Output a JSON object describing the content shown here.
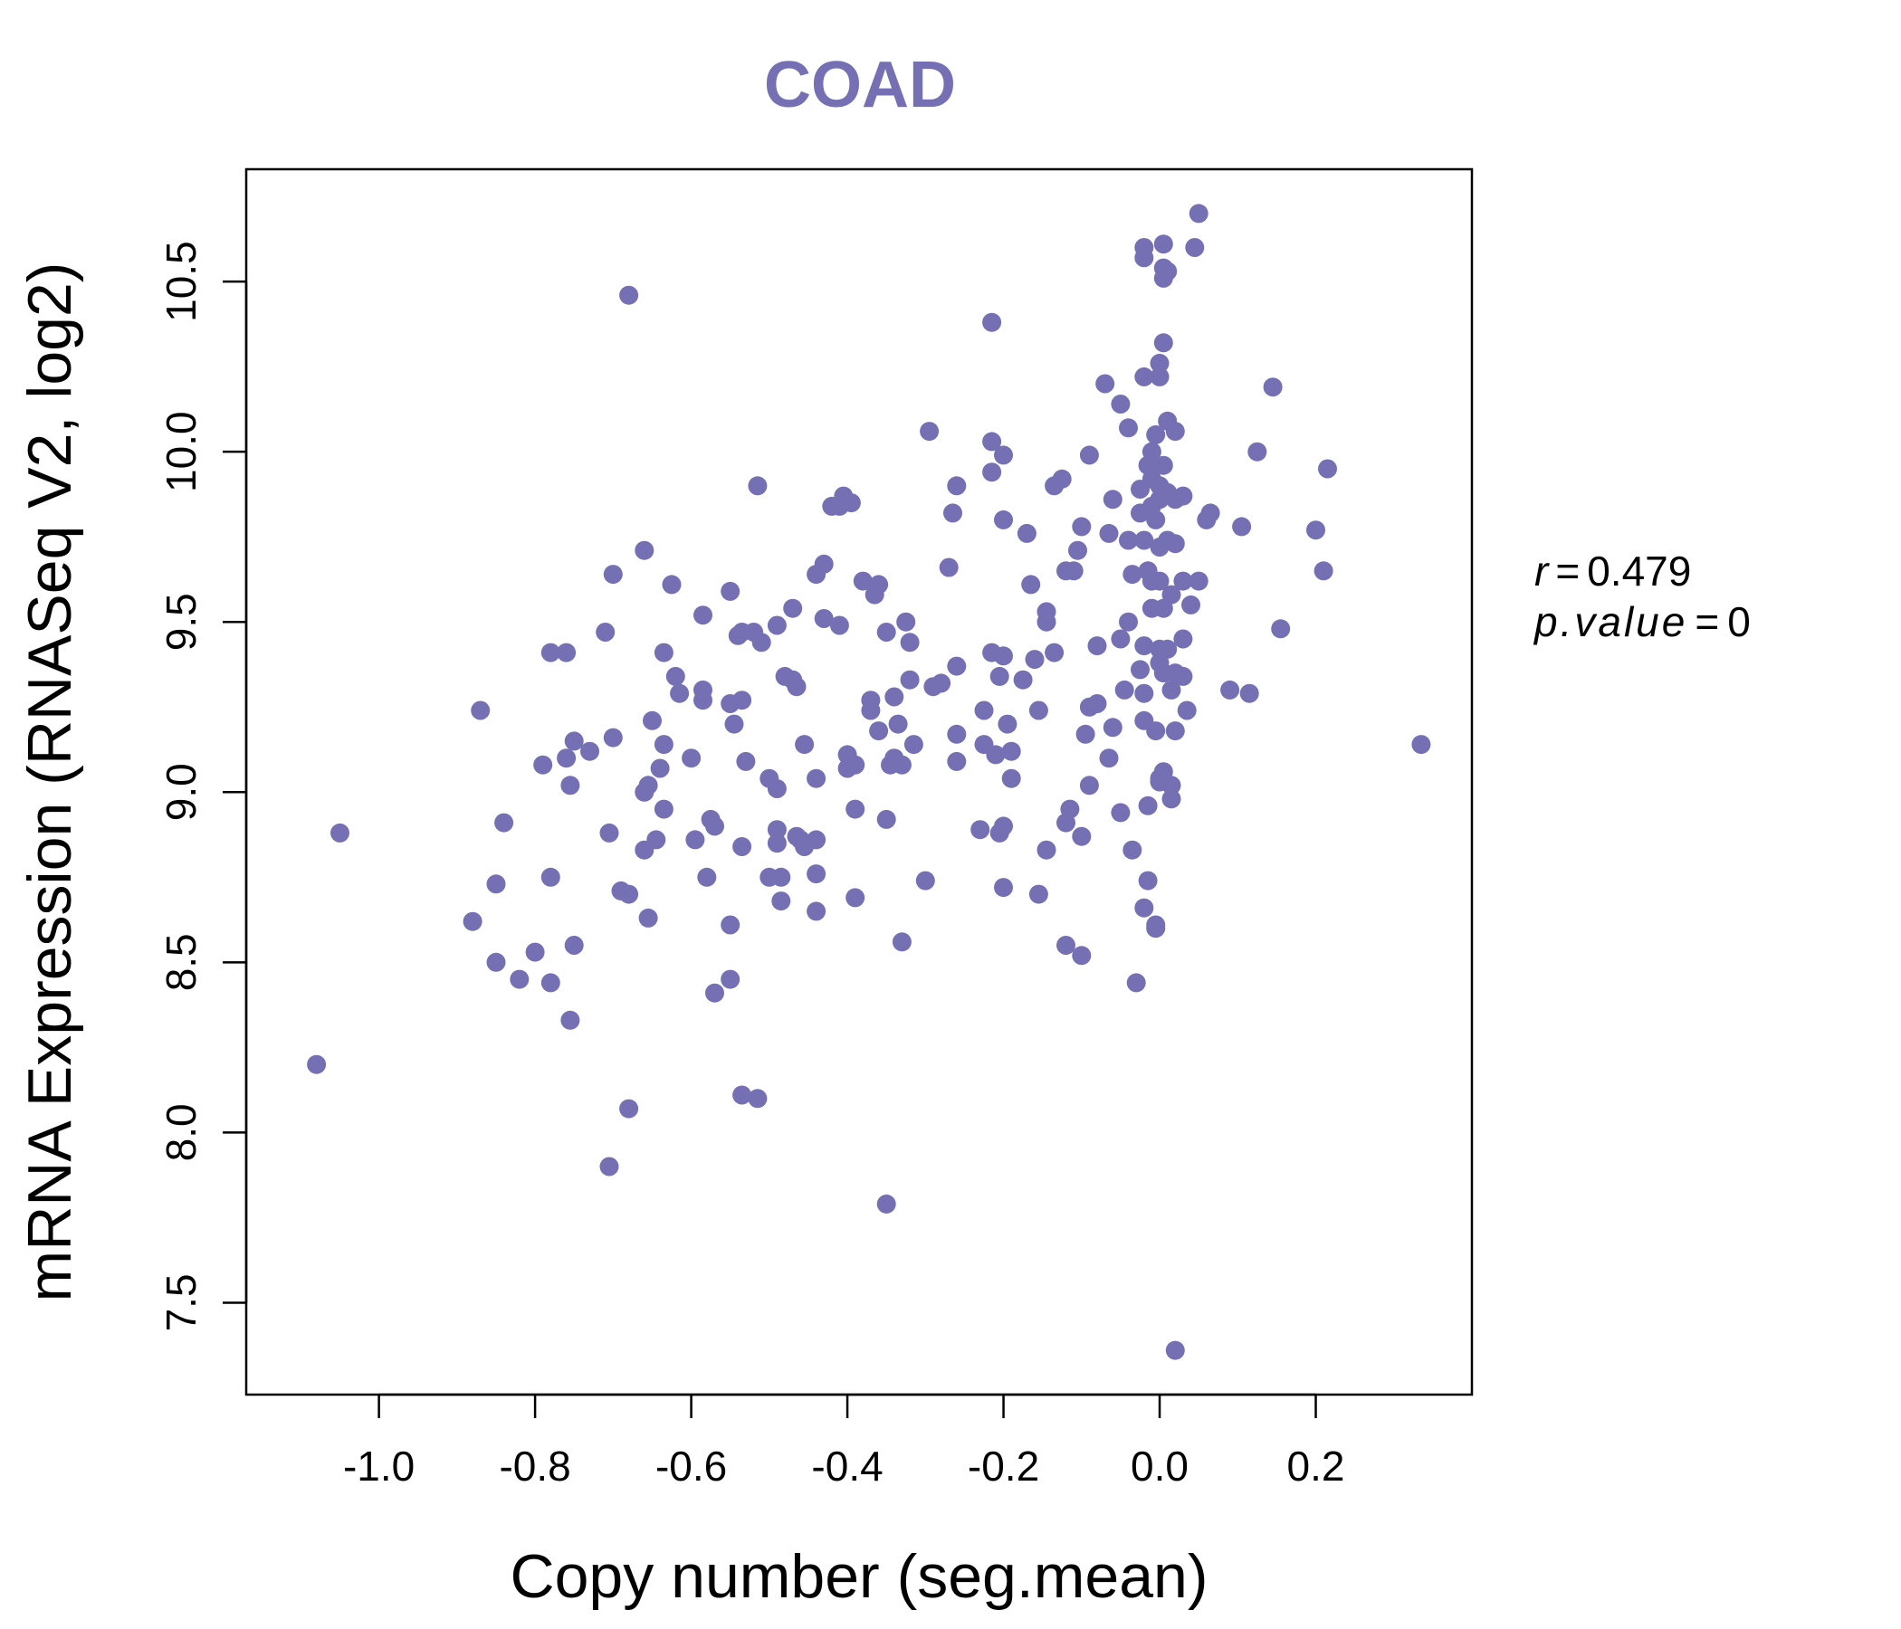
{
  "colors": {
    "point": "#7570B3",
    "title": "#7570B3",
    "axis": "#000000",
    "background": "#ffffff"
  },
  "chart_data": {
    "type": "scatter",
    "title": "COAD",
    "xlabel": "Copy number (seg.mean)",
    "ylabel": "mRNA Expression (RNASeq V2, log2)",
    "xlim": [
      -1.17,
      0.4
    ],
    "ylim": [
      7.23,
      10.83
    ],
    "xticks": [
      -1.0,
      -0.8,
      -0.6,
      -0.4,
      -0.2,
      0.0,
      0.2
    ],
    "xtick_labels": [
      "-1.0",
      "-0.8",
      "-0.6",
      "-0.4",
      "-0.2",
      "0.0",
      "0.2"
    ],
    "yticks": [
      7.5,
      8.0,
      8.5,
      9.0,
      9.5,
      10.0,
      10.5
    ],
    "ytick_labels": [
      "7.5",
      "8.0",
      "8.5",
      "9.0",
      "9.5",
      "10.0",
      "10.5"
    ],
    "stats": {
      "r_label": "r",
      "r_value": "0.479",
      "p_label": "p.value",
      "p_value": "0"
    },
    "points": [
      [
        -1.08,
        8.2
      ],
      [
        -1.05,
        8.88
      ],
      [
        -0.87,
        9.24
      ],
      [
        -0.88,
        8.62
      ],
      [
        -0.85,
        8.73
      ],
      [
        -0.85,
        8.5
      ],
      [
        -0.84,
        8.91
      ],
      [
        -0.82,
        8.45
      ],
      [
        -0.8,
        8.53
      ],
      [
        -0.79,
        9.08
      ],
      [
        -0.78,
        9.41
      ],
      [
        -0.76,
        9.41
      ],
      [
        -0.78,
        8.75
      ],
      [
        -0.78,
        8.44
      ],
      [
        -0.76,
        9.1
      ],
      [
        -0.75,
        9.15
      ],
      [
        -0.755,
        9.02
      ],
      [
        -0.75,
        8.55
      ],
      [
        -0.755,
        8.33
      ],
      [
        -0.73,
        9.12
      ],
      [
        -0.71,
        9.47
      ],
      [
        -0.7,
        9.64
      ],
      [
        -0.7,
        9.16
      ],
      [
        -0.705,
        8.88
      ],
      [
        -0.69,
        8.71
      ],
      [
        -0.68,
        8.7
      ],
      [
        -0.68,
        10.46
      ],
      [
        -0.68,
        8.07
      ],
      [
        -0.705,
        7.9
      ],
      [
        -0.66,
        9.71
      ],
      [
        -0.66,
        9.0
      ],
      [
        -0.655,
        9.02
      ],
      [
        -0.655,
        8.63
      ],
      [
        -0.66,
        8.83
      ],
      [
        -0.65,
        9.21
      ],
      [
        -0.645,
        8.86
      ],
      [
        -0.64,
        9.07
      ],
      [
        -0.635,
        9.14
      ],
      [
        -0.635,
        8.95
      ],
      [
        -0.635,
        9.41
      ],
      [
        -0.625,
        9.61
      ],
      [
        -0.62,
        9.34
      ],
      [
        -0.615,
        9.29
      ],
      [
        -0.6,
        9.1
      ],
      [
        -0.595,
        8.86
      ],
      [
        -0.585,
        9.52
      ],
      [
        -0.585,
        9.3
      ],
      [
        -0.585,
        9.27
      ],
      [
        -0.58,
        8.75
      ],
      [
        -0.575,
        8.92
      ],
      [
        -0.57,
        8.9
      ],
      [
        -0.57,
        8.41
      ],
      [
        -0.55,
        9.59
      ],
      [
        -0.55,
        9.26
      ],
      [
        -0.545,
        9.2
      ],
      [
        -0.54,
        9.46
      ],
      [
        -0.535,
        9.47
      ],
      [
        -0.535,
        9.27
      ],
      [
        -0.535,
        8.84
      ],
      [
        -0.53,
        9.09
      ],
      [
        -0.55,
        8.61
      ],
      [
        -0.55,
        8.45
      ],
      [
        -0.535,
        8.11
      ],
      [
        -0.515,
        8.1
      ],
      [
        -0.515,
        9.9
      ],
      [
        -0.52,
        9.47
      ],
      [
        -0.51,
        9.44
      ],
      [
        -0.5,
        8.75
      ],
      [
        -0.5,
        9.04
      ],
      [
        -0.49,
        9.49
      ],
      [
        -0.49,
        9.01
      ],
      [
        -0.49,
        8.89
      ],
      [
        -0.49,
        8.85
      ],
      [
        -0.485,
        8.75
      ],
      [
        -0.485,
        8.68
      ],
      [
        -0.48,
        9.34
      ],
      [
        -0.47,
        9.54
      ],
      [
        -0.47,
        9.33
      ],
      [
        -0.465,
        8.87
      ],
      [
        -0.46,
        8.86
      ],
      [
        -0.465,
        9.31
      ],
      [
        -0.455,
        9.14
      ],
      [
        -0.455,
        8.84
      ],
      [
        -0.44,
        9.64
      ],
      [
        -0.44,
        8.86
      ],
      [
        -0.44,
        9.04
      ],
      [
        -0.44,
        8.76
      ],
      [
        -0.44,
        8.65
      ],
      [
        -0.43,
        9.67
      ],
      [
        -0.43,
        9.51
      ],
      [
        -0.42,
        9.84
      ],
      [
        -0.41,
        9.84
      ],
      [
        -0.405,
        9.87
      ],
      [
        -0.395,
        9.85
      ],
      [
        -0.41,
        9.49
      ],
      [
        -0.4,
        9.11
      ],
      [
        -0.4,
        9.07
      ],
      [
        -0.39,
        9.08
      ],
      [
        -0.39,
        8.95
      ],
      [
        -0.39,
        8.69
      ],
      [
        -0.38,
        9.62
      ],
      [
        -0.37,
        9.27
      ],
      [
        -0.37,
        9.24
      ],
      [
        -0.365,
        9.58
      ],
      [
        -0.36,
        9.61
      ],
      [
        -0.36,
        9.18
      ],
      [
        -0.35,
        9.47
      ],
      [
        -0.35,
        8.92
      ],
      [
        -0.345,
        9.08
      ],
      [
        -0.34,
        9.1
      ],
      [
        -0.34,
        9.28
      ],
      [
        -0.335,
        9.2
      ],
      [
        -0.33,
        9.08
      ],
      [
        -0.325,
        9.5
      ],
      [
        -0.32,
        9.44
      ],
      [
        -0.32,
        9.33
      ],
      [
        -0.315,
        9.14
      ],
      [
        -0.33,
        8.56
      ],
      [
        -0.3,
        8.74
      ],
      [
        -0.35,
        7.79
      ],
      [
        -0.295,
        10.06
      ],
      [
        -0.29,
        9.31
      ],
      [
        -0.28,
        9.32
      ],
      [
        -0.27,
        9.66
      ],
      [
        -0.265,
        9.82
      ],
      [
        -0.26,
        9.9
      ],
      [
        -0.26,
        9.37
      ],
      [
        -0.26,
        9.17
      ],
      [
        -0.26,
        9.09
      ],
      [
        -0.23,
        8.89
      ],
      [
        -0.225,
        9.24
      ],
      [
        -0.225,
        9.14
      ],
      [
        -0.215,
        10.38
      ],
      [
        -0.215,
        10.03
      ],
      [
        -0.215,
        9.94
      ],
      [
        -0.215,
        9.41
      ],
      [
        -0.21,
        9.11
      ],
      [
        -0.205,
        9.34
      ],
      [
        -0.2,
        9.4
      ],
      [
        -0.2,
        9.8
      ],
      [
        -0.2,
        9.99
      ],
      [
        -0.205,
        8.88
      ],
      [
        -0.2,
        8.9
      ],
      [
        -0.2,
        8.72
      ],
      [
        -0.195,
        9.2
      ],
      [
        -0.19,
        9.12
      ],
      [
        -0.19,
        9.04
      ],
      [
        -0.175,
        9.33
      ],
      [
        -0.17,
        9.76
      ],
      [
        -0.165,
        9.61
      ],
      [
        -0.16,
        9.39
      ],
      [
        -0.155,
        9.24
      ],
      [
        -0.155,
        8.7
      ],
      [
        -0.145,
        8.83
      ],
      [
        -0.145,
        9.5
      ],
      [
        -0.145,
        9.53
      ],
      [
        -0.135,
        9.9
      ],
      [
        -0.135,
        9.41
      ],
      [
        -0.125,
        9.92
      ],
      [
        -0.12,
        9.65
      ],
      [
        -0.12,
        8.91
      ],
      [
        -0.115,
        8.95
      ],
      [
        -0.12,
        8.55
      ],
      [
        -0.11,
        9.65
      ],
      [
        -0.105,
        9.71
      ],
      [
        -0.1,
        9.78
      ],
      [
        -0.1,
        8.87
      ],
      [
        -0.1,
        8.52
      ],
      [
        -0.09,
        9.99
      ],
      [
        -0.09,
        9.25
      ],
      [
        -0.095,
        9.17
      ],
      [
        -0.09,
        9.02
      ],
      [
        -0.08,
        9.26
      ],
      [
        -0.08,
        9.43
      ],
      [
        -0.07,
        10.2
      ],
      [
        -0.065,
        9.76
      ],
      [
        -0.06,
        9.86
      ],
      [
        -0.06,
        9.19
      ],
      [
        -0.065,
        9.1
      ],
      [
        -0.05,
        10.14
      ],
      [
        -0.05,
        9.45
      ],
      [
        -0.05,
        8.94
      ],
      [
        -0.045,
        9.3
      ],
      [
        -0.04,
        10.07
      ],
      [
        -0.04,
        9.74
      ],
      [
        -0.04,
        9.5
      ],
      [
        -0.035,
        9.64
      ],
      [
        -0.035,
        8.83
      ],
      [
        -0.03,
        8.44
      ],
      [
        -0.025,
        9.82
      ],
      [
        -0.025,
        9.89
      ],
      [
        -0.025,
        9.36
      ],
      [
        -0.02,
        10.6
      ],
      [
        -0.02,
        10.57
      ],
      [
        -0.02,
        10.22
      ],
      [
        -0.02,
        9.74
      ],
      [
        -0.02,
        9.43
      ],
      [
        -0.02,
        9.29
      ],
      [
        -0.02,
        9.21
      ],
      [
        -0.02,
        8.66
      ],
      [
        -0.015,
        9.96
      ],
      [
        -0.015,
        9.65
      ],
      [
        -0.015,
        8.96
      ],
      [
        -0.015,
        8.74
      ],
      [
        -0.01,
        10.0
      ],
      [
        -0.01,
        9.92
      ],
      [
        -0.01,
        9.84
      ],
      [
        -0.01,
        9.62
      ],
      [
        -0.01,
        9.54
      ],
      [
        -0.005,
        10.05
      ],
      [
        -0.005,
        9.8
      ],
      [
        -0.005,
        9.18
      ],
      [
        -0.005,
        8.61
      ],
      [
        -0.005,
        8.6
      ],
      [
        0.0,
        10.26
      ],
      [
        0.0,
        10.22
      ],
      [
        0.0,
        9.9
      ],
      [
        0.0,
        9.86
      ],
      [
        0.0,
        9.72
      ],
      [
        0.0,
        9.62
      ],
      [
        0.0,
        9.42
      ],
      [
        0.0,
        9.38
      ],
      [
        0.0,
        9.04
      ],
      [
        0.0,
        9.03
      ],
      [
        0.005,
        10.51
      ],
      [
        0.005,
        10.32
      ],
      [
        0.005,
        10.61
      ],
      [
        0.005,
        10.54
      ],
      [
        0.005,
        9.96
      ],
      [
        0.005,
        9.54
      ],
      [
        0.005,
        9.35
      ],
      [
        0.005,
        9.06
      ],
      [
        0.01,
        10.53
      ],
      [
        0.01,
        10.09
      ],
      [
        0.01,
        9.88
      ],
      [
        0.01,
        9.74
      ],
      [
        0.01,
        9.42
      ],
      [
        0.015,
        9.58
      ],
      [
        0.015,
        9.3
      ],
      [
        0.015,
        9.02
      ],
      [
        0.015,
        8.98
      ],
      [
        0.02,
        10.06
      ],
      [
        0.02,
        9.86
      ],
      [
        0.02,
        9.73
      ],
      [
        0.02,
        9.35
      ],
      [
        0.02,
        9.18
      ],
      [
        0.02,
        7.36
      ],
      [
        0.03,
        9.62
      ],
      [
        0.03,
        9.45
      ],
      [
        0.03,
        9.34
      ],
      [
        0.03,
        9.87
      ],
      [
        0.035,
        9.24
      ],
      [
        0.04,
        9.55
      ],
      [
        0.045,
        10.6
      ],
      [
        0.05,
        10.7
      ],
      [
        0.05,
        9.62
      ],
      [
        0.06,
        9.8
      ],
      [
        0.065,
        9.82
      ],
      [
        0.09,
        9.3
      ],
      [
        0.105,
        9.78
      ],
      [
        0.115,
        9.29
      ],
      [
        0.125,
        10.0
      ],
      [
        0.145,
        10.19
      ],
      [
        0.155,
        9.48
      ],
      [
        0.2,
        9.77
      ],
      [
        0.21,
        9.65
      ],
      [
        0.215,
        9.95
      ],
      [
        0.335,
        9.14
      ]
    ]
  }
}
